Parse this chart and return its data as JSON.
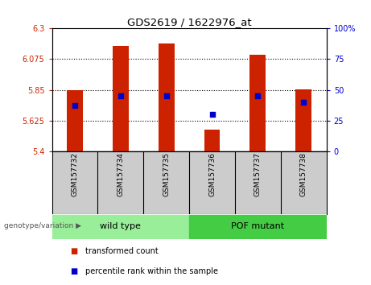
{
  "title": "GDS2619 / 1622976_at",
  "samples": [
    "GSM157732",
    "GSM157734",
    "GSM157735",
    "GSM157736",
    "GSM157737",
    "GSM157738"
  ],
  "bar_values": [
    5.85,
    6.17,
    6.19,
    5.56,
    6.11,
    5.855
  ],
  "percentile_values": [
    37,
    45,
    45,
    30,
    45,
    40
  ],
  "ylim_left": [
    5.4,
    6.3
  ],
  "ylim_right": [
    0,
    100
  ],
  "yticks_left": [
    5.4,
    5.625,
    5.85,
    6.075,
    6.3
  ],
  "ytick_labels_left": [
    "5.4",
    "5.625",
    "5.85",
    "6.075",
    "6.3"
  ],
  "yticks_right": [
    0,
    25,
    50,
    75,
    100
  ],
  "ytick_labels_right": [
    "0",
    "25",
    "50",
    "75",
    "100%"
  ],
  "hlines": [
    5.625,
    5.85,
    6.075
  ],
  "bar_color": "#CC2200",
  "dot_color": "#0000CC",
  "bar_bottom": 5.4,
  "groups": [
    {
      "label": "wild type",
      "samples": [
        0,
        1,
        2
      ],
      "color": "#99EE99"
    },
    {
      "label": "POF mutant",
      "samples": [
        3,
        4,
        5
      ],
      "color": "#44CC44"
    }
  ],
  "group_label": "genotype/variation",
  "legend_items": [
    {
      "color": "#CC2200",
      "label": "transformed count"
    },
    {
      "color": "#0000CC",
      "label": "percentile rank within the sample"
    }
  ],
  "tick_label_color_left": "#CC2200",
  "tick_label_color_right": "#0000CC",
  "bar_width": 0.35,
  "plot_bg_color": "#FFFFFF",
  "xtick_area_color": "#CCCCCC",
  "group_area_color": "#DDDDDD"
}
